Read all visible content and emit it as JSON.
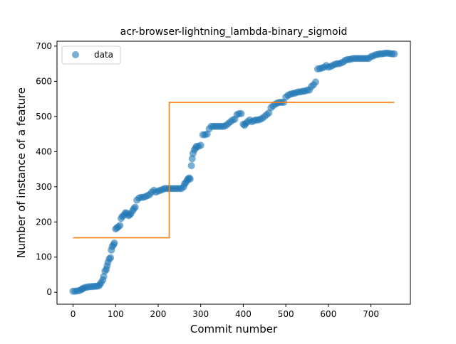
{
  "chart_data": {
    "type": "scatter",
    "title": "acr-browser-lightning_lambda-binary_sigmoid",
    "xlabel": "Commit number",
    "ylabel": "Number of instance of a feature",
    "xlim": [
      -37.75,
      792.75
    ],
    "ylim": [
      -33.95,
      713.95
    ],
    "xticks": [
      0,
      100,
      200,
      300,
      400,
      500,
      600,
      700
    ],
    "yticks": [
      0,
      100,
      200,
      300,
      400,
      500,
      600,
      700
    ],
    "grid": false,
    "legend": {
      "placement": "top-left",
      "entries": [
        {
          "label": "data",
          "marker": "circle"
        }
      ]
    },
    "colors": {
      "data": "#1f77b4",
      "fit": "#ff7f0e"
    },
    "series": [
      {
        "name": "data",
        "kind": "scatter",
        "x": [
          0,
          5,
          10,
          15,
          20,
          22,
          25,
          30,
          35,
          40,
          45,
          50,
          55,
          60,
          63,
          66,
          70,
          72,
          75,
          78,
          80,
          82,
          85,
          88,
          90,
          92,
          95,
          97,
          100,
          103,
          106,
          110,
          113,
          116,
          120,
          123,
          126,
          130,
          133,
          136,
          140,
          143,
          146,
          150,
          155,
          160,
          165,
          170,
          175,
          180,
          185,
          190,
          195,
          200,
          205,
          210,
          215,
          220,
          225,
          230,
          235,
          240,
          245,
          250,
          255,
          260,
          262,
          265,
          268,
          270,
          273,
          275,
          278,
          280,
          282,
          285,
          288,
          290,
          295,
          300,
          305,
          310,
          315,
          320,
          325,
          330,
          335,
          340,
          345,
          350,
          355,
          360,
          365,
          370,
          375,
          380,
          385,
          390,
          395,
          400,
          403,
          406,
          410,
          415,
          420,
          425,
          430,
          435,
          440,
          445,
          450,
          455,
          460,
          465,
          470,
          475,
          480,
          485,
          490,
          495,
          500,
          505,
          510,
          515,
          520,
          525,
          530,
          535,
          540,
          545,
          550,
          555,
          560,
          565,
          570,
          575,
          580,
          585,
          590,
          595,
          600,
          605,
          610,
          615,
          620,
          625,
          630,
          635,
          640,
          645,
          650,
          655,
          660,
          665,
          670,
          675,
          680,
          685,
          690,
          695,
          700,
          705,
          710,
          715,
          720,
          725,
          730,
          735,
          740,
          745,
          750,
          755
        ],
        "y": [
          3,
          3,
          4,
          5,
          8,
          10,
          12,
          14,
          15,
          16,
          16,
          17,
          17,
          18,
          22,
          28,
          35,
          45,
          60,
          65,
          75,
          85,
          95,
          98,
          120,
          130,
          135,
          140,
          180,
          183,
          186,
          190,
          210,
          216,
          220,
          226,
          225,
          218,
          220,
          224,
          232,
          238,
          242,
          262,
          268,
          270,
          270,
          272,
          275,
          278,
          285,
          290,
          285,
          288,
          290,
          292,
          295,
          295,
          295,
          295,
          295,
          295,
          295,
          295,
          295,
          300,
          308,
          312,
          318,
          322,
          325,
          322,
          360,
          380,
          395,
          405,
          410,
          415,
          415,
          418,
          448,
          448,
          450,
          465,
          472,
          472,
          472,
          472,
          472,
          472,
          472,
          475,
          480,
          485,
          490,
          492,
          505,
          508,
          508,
          478,
          475,
          480,
          485,
          490,
          485,
          488,
          490,
          490,
          492,
          495,
          500,
          505,
          510,
          525,
          530,
          535,
          538,
          540,
          540,
          540,
          555,
          560,
          563,
          565,
          566,
          568,
          570,
          570,
          572,
          572,
          575,
          575,
          585,
          590,
          598,
          635,
          636,
          638,
          640,
          645,
          640,
          642,
          645,
          648,
          650,
          650,
          652,
          655,
          660,
          662,
          662,
          664,
          665,
          665,
          665,
          665,
          665,
          665,
          665,
          665,
          670,
          672,
          675,
          676,
          678,
          678,
          679,
          680,
          680,
          679,
          678,
          678
        ]
      },
      {
        "name": "",
        "kind": "step",
        "x": [
          0,
          226,
          226,
          755
        ],
        "y": [
          155,
          155,
          540,
          540
        ]
      }
    ]
  }
}
